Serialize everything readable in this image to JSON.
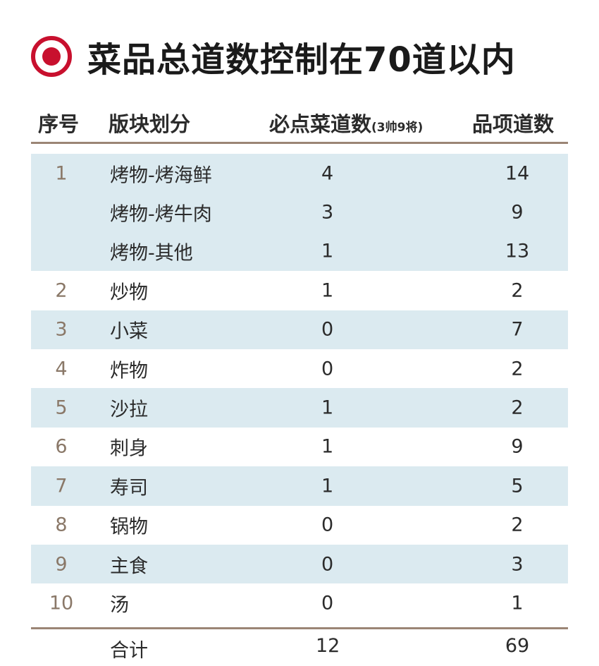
{
  "title": "菜品总道数控制在70道以内",
  "icon": "target-icon",
  "accent_color": "#c8102e",
  "row_shade_color": "#dbeaf0",
  "rule_color": "#9b8575",
  "headers": {
    "index": "序号",
    "section": "版块划分",
    "required": "必点菜道数",
    "required_note": "(3帅9将)",
    "items": "品项道数"
  },
  "rows": [
    {
      "index": "1",
      "section": "烤物-烤海鲜",
      "required": "4",
      "items": "14"
    },
    {
      "index": "",
      "section": "烤物-烤牛肉",
      "required": "3",
      "items": "9"
    },
    {
      "index": "",
      "section": "烤物-其他",
      "required": "1",
      "items": "13"
    },
    {
      "index": "2",
      "section": "炒物",
      "required": "1",
      "items": "2"
    },
    {
      "index": "3",
      "section": "小菜",
      "required": "0",
      "items": "7"
    },
    {
      "index": "4",
      "section": "炸物",
      "required": "0",
      "items": "2"
    },
    {
      "index": "5",
      "section": "沙拉",
      "required": "1",
      "items": "2"
    },
    {
      "index": "6",
      "section": "刺身",
      "required": "1",
      "items": "9"
    },
    {
      "index": "7",
      "section": "寿司",
      "required": "1",
      "items": "5"
    },
    {
      "index": "8",
      "section": "锅物",
      "required": "0",
      "items": "2"
    },
    {
      "index": "9",
      "section": "主食",
      "required": "0",
      "items": "3"
    },
    {
      "index": "10",
      "section": "汤",
      "required": "0",
      "items": "1"
    }
  ],
  "total": {
    "label": "合计",
    "required": "12",
    "items": "69"
  }
}
